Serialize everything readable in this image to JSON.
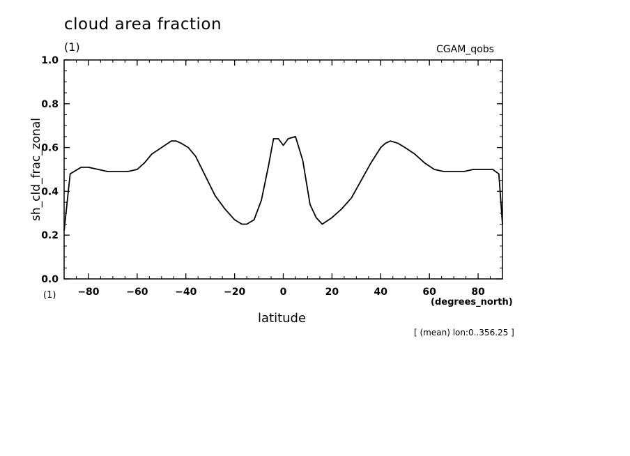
{
  "title": "cloud area fraction",
  "units": "(1)",
  "dataset": "CGAM_qobs",
  "y_units": "(1)",
  "x_units": "(degrees_north)",
  "subtitle": "[ (mean) lon:0..356.25 ]",
  "chart_data": {
    "type": "line",
    "xlabel": "latitude",
    "ylabel": "sh_cld_frac_zonal",
    "xlim": [
      -90,
      90
    ],
    "ylim": [
      0,
      1
    ],
    "x_ticks": [
      -80,
      -60,
      -40,
      -20,
      0,
      20,
      40,
      60,
      80
    ],
    "x_tick_labels": [
      "−80",
      "−60",
      "−40",
      "−20",
      "0",
      "20",
      "40",
      "60",
      "80"
    ],
    "y_ticks": [
      0,
      0.2,
      0.4,
      0.6,
      0.8,
      1.0
    ],
    "y_tick_labels": [
      "0.0",
      "0.2",
      "0.4",
      "0.6",
      "0.8",
      "1.0"
    ],
    "grid": false,
    "series": [
      {
        "color": "#000000",
        "x": [
          -90,
          -87.5,
          -83,
          -80,
          -76,
          -72,
          -68,
          -64,
          -60,
          -57,
          -54,
          -50,
          -46,
          -44,
          -42,
          -39,
          -36,
          -32,
          -28,
          -24,
          -20,
          -17,
          -15,
          -12,
          -9,
          -6,
          -4,
          -2,
          0,
          2,
          5,
          8,
          11,
          13.5,
          16,
          20,
          24,
          28,
          32,
          36,
          40,
          42,
          44,
          47,
          50,
          54,
          58,
          62,
          66,
          70,
          74,
          78,
          82,
          86,
          88.5,
          90
        ],
        "y": [
          0.22,
          0.48,
          0.51,
          0.51,
          0.5,
          0.49,
          0.49,
          0.49,
          0.5,
          0.53,
          0.57,
          0.6,
          0.63,
          0.63,
          0.62,
          0.6,
          0.56,
          0.47,
          0.38,
          0.32,
          0.27,
          0.25,
          0.25,
          0.27,
          0.36,
          0.52,
          0.64,
          0.64,
          0.61,
          0.64,
          0.65,
          0.54,
          0.34,
          0.28,
          0.25,
          0.28,
          0.32,
          0.37,
          0.45,
          0.53,
          0.6,
          0.62,
          0.63,
          0.62,
          0.6,
          0.57,
          0.53,
          0.5,
          0.49,
          0.49,
          0.49,
          0.5,
          0.5,
          0.5,
          0.48,
          0.25
        ]
      }
    ]
  }
}
